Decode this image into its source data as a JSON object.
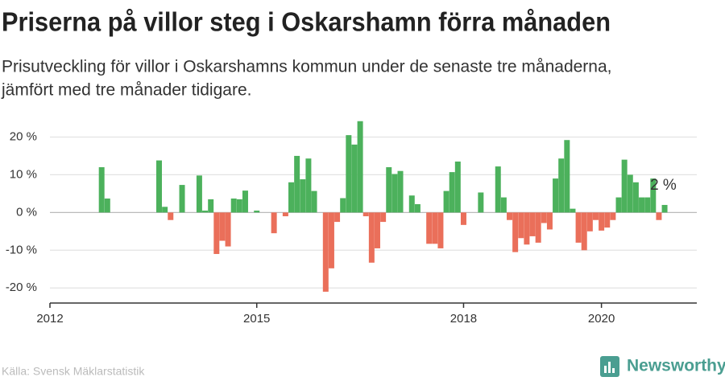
{
  "chart_data": {
    "type": "bar",
    "title": "Priserna på villor steg i Oskarshamn förra månaden",
    "subtitle": [
      "Prisutveckling för villor i Oskarshamns kommun under de senaste tre månaderna,",
      "jämfört med tre månader tidigare."
    ],
    "x": [
      9,
      10,
      19,
      20,
      21,
      23,
      26,
      27,
      28,
      29,
      30,
      31,
      32,
      33,
      34,
      36,
      39,
      41,
      42,
      43,
      44,
      45,
      46,
      48,
      49,
      50,
      51,
      52,
      53,
      54,
      55,
      56,
      57,
      58,
      59,
      60,
      61,
      63,
      64,
      66,
      67,
      68,
      69,
      70,
      71,
      72,
      75,
      78,
      79,
      80,
      81,
      82,
      83,
      84,
      85,
      86,
      87,
      88,
      89,
      90,
      91,
      92,
      93,
      94,
      95,
      96,
      97,
      98,
      99,
      100,
      101,
      102,
      103,
      104,
      105,
      106,
      107
    ],
    "values": [
      12,
      3.7,
      13.8,
      1.5,
      -2,
      7.3,
      9.8,
      0.5,
      3.5,
      -11,
      -7.5,
      -9,
      3.7,
      3.5,
      5.8,
      0.5,
      -5.5,
      -1,
      8,
      15,
      8.8,
      14.3,
      5.7,
      -21,
      -14.8,
      -2.5,
      3.8,
      20.5,
      18,
      24.2,
      -1,
      -13.3,
      -9.5,
      -2.5,
      12,
      10.2,
      11,
      4.5,
      2.2,
      -8.3,
      -8.3,
      -9.5,
      5.7,
      10.7,
      13.5,
      -3.3,
      5.3,
      12.2,
      4,
      -2,
      -10.5,
      -6.8,
      -8.5,
      -6.3,
      -8,
      -2.8,
      -4.5,
      9,
      14.3,
      19.2,
      1,
      -8,
      -10,
      -5,
      -2,
      -4.8,
      -4,
      -2,
      4,
      14,
      10,
      8,
      4,
      4,
      9,
      -2,
      2
    ],
    "positive_color": "#4cb15c",
    "negative_color": "#ea6f5a",
    "xlim": [
      0,
      112.6
    ],
    "xticks": [
      {
        "value": 0,
        "label": "2012"
      },
      {
        "value": 36,
        "label": "2015"
      },
      {
        "value": 72,
        "label": "2018"
      },
      {
        "value": 96,
        "label": "2020"
      }
    ],
    "ylim": [
      -24,
      25
    ],
    "yticks": [
      {
        "value": 20,
        "label": "20 %"
      },
      {
        "value": 10,
        "label": "10 %"
      },
      {
        "value": 0,
        "label": "0 %"
      },
      {
        "value": -10,
        "label": "-10 %"
      },
      {
        "value": -20,
        "label": "-20 %"
      }
    ],
    "grid": true,
    "annotation": "2 %",
    "source": "Källa: Svensk Mäklarstatistik",
    "brand": "Newsworthy"
  }
}
